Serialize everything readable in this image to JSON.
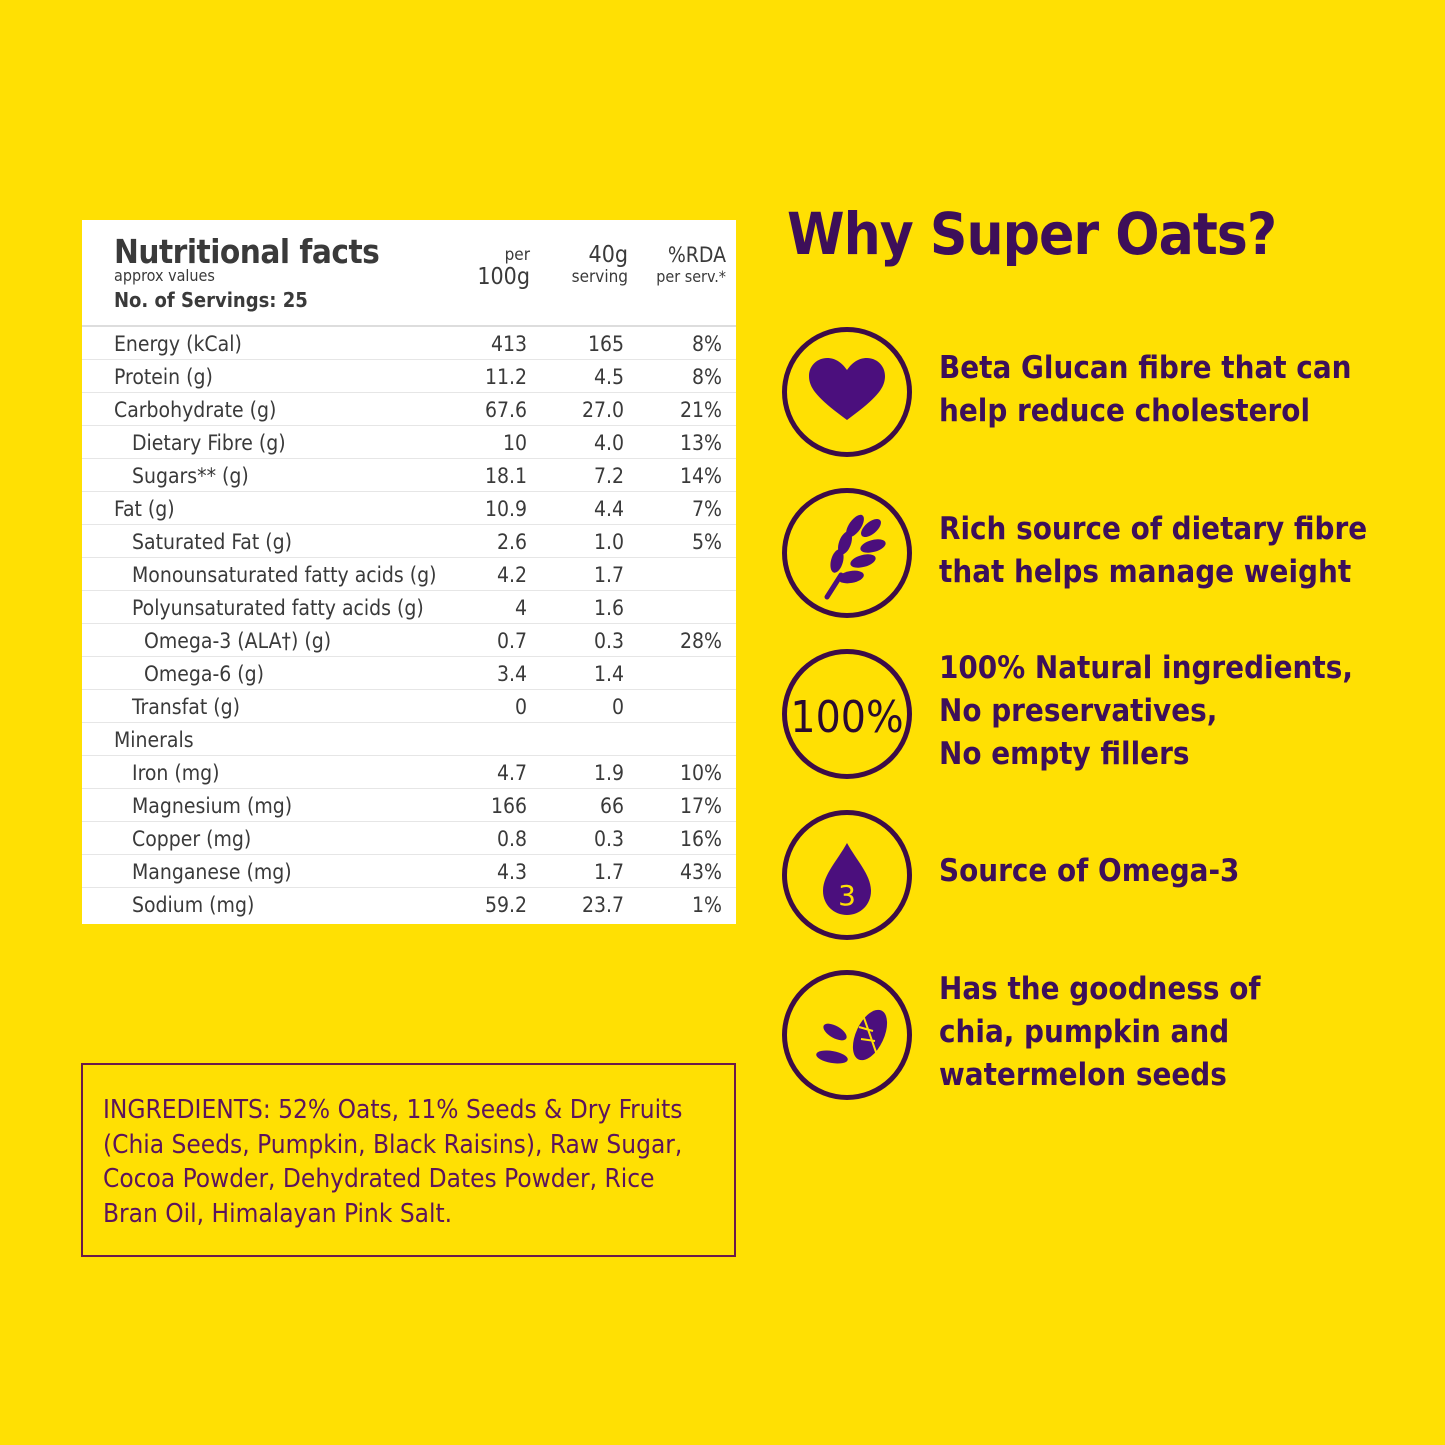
{
  "nutrition": {
    "title": "Nutritional facts",
    "subtitle": "approx values",
    "servings": "No. of Servings: 25",
    "columns": [
      {
        "line1": "per",
        "line2": "100g"
      },
      {
        "line1": "40g",
        "line2": "serving"
      },
      {
        "line1": "%RDA",
        "line2": "per serv.*"
      }
    ],
    "rows": [
      {
        "name": "Energy (kCal)",
        "per100": "413",
        "serving": "165",
        "rda": "8%",
        "indent": 0
      },
      {
        "name": "Protein (g)",
        "per100": "11.2",
        "serving": "4.5",
        "rda": "8%",
        "indent": 0
      },
      {
        "name": "Carbohydrate (g)",
        "per100": "67.6",
        "serving": "27.0",
        "rda": "21%",
        "indent": 0
      },
      {
        "name": "Dietary Fibre (g)",
        "per100": "10",
        "serving": "4.0",
        "rda": "13%",
        "indent": 1
      },
      {
        "name": "Sugars** (g)",
        "per100": "18.1",
        "serving": "7.2",
        "rda": "14%",
        "indent": 1
      },
      {
        "name": "Fat (g)",
        "per100": "10.9",
        "serving": "4.4",
        "rda": "7%",
        "indent": 0
      },
      {
        "name": "Saturated Fat (g)",
        "per100": "2.6",
        "serving": "1.0",
        "rda": "5%",
        "indent": 1
      },
      {
        "name": "Monounsaturated fatty acids (g)",
        "per100": "4.2",
        "serving": "1.7",
        "rda": "",
        "indent": 1
      },
      {
        "name": "Polyunsaturated fatty acids (g)",
        "per100": "4",
        "serving": "1.6",
        "rda": "",
        "indent": 1
      },
      {
        "name": "Omega-3 (ALA†) (g)",
        "per100": "0.7",
        "serving": "0.3",
        "rda": "28%",
        "indent": 2
      },
      {
        "name": "Omega-6 (g)",
        "per100": "3.4",
        "serving": "1.4",
        "rda": "",
        "indent": 2
      },
      {
        "name": "Transfat (g)",
        "per100": "0",
        "serving": "0",
        "rda": "",
        "indent": 1
      },
      {
        "name": "Minerals",
        "per100": "",
        "serving": "",
        "rda": "",
        "indent": 0
      },
      {
        "name": "Iron (mg)",
        "per100": "4.7",
        "serving": "1.9",
        "rda": "10%",
        "indent": 1
      },
      {
        "name": "Magnesium (mg)",
        "per100": "166",
        "serving": "66",
        "rda": "17%",
        "indent": 1
      },
      {
        "name": "Copper (mg)",
        "per100": "0.8",
        "serving": "0.3",
        "rda": "16%",
        "indent": 1
      },
      {
        "name": "Manganese (mg)",
        "per100": "4.3",
        "serving": "1.7",
        "rda": "43%",
        "indent": 1
      },
      {
        "name": "Sodium (mg)",
        "per100": "59.2",
        "serving": "23.7",
        "rda": "1%",
        "indent": 1
      }
    ]
  },
  "why": {
    "title": "Why Super Oats?",
    "features": [
      {
        "icon": "heart-icon",
        "lines": [
          "Beta Glucan fibre that can",
          "help reduce cholesterol"
        ]
      },
      {
        "icon": "wheat-icon",
        "lines": [
          "Rich source of dietary fibre",
          "that helps manage weight"
        ]
      },
      {
        "icon": "hundred-percent-icon",
        "icon_text": "100%",
        "lines": [
          "100% Natural ingredients,",
          "No preservatives,",
          "No empty fillers"
        ]
      },
      {
        "icon": "omega-drop-icon",
        "icon_text": "3",
        "lines": [
          "Source of Omega-3"
        ]
      },
      {
        "icon": "seeds-icon",
        "lines": [
          "Has the goodness of",
          "chia, pumpkin and",
          "watermelon seeds"
        ]
      }
    ]
  },
  "ingredients": {
    "text": "INGREDIENTS: 52% Oats, 11% Seeds & Dry Fruits (Chia Seeds, Pumpkin, Black Raisins), Raw Sugar, Cocoa Powder, Dehydrated Dates Powder, Rice Bran Oil, Himalayan Pink Salt."
  },
  "colors": {
    "background": "#FFE003",
    "purple": "#3d0f59",
    "icon_fill": "#4b0f7d",
    "ingredients_text": "#5c145c"
  }
}
